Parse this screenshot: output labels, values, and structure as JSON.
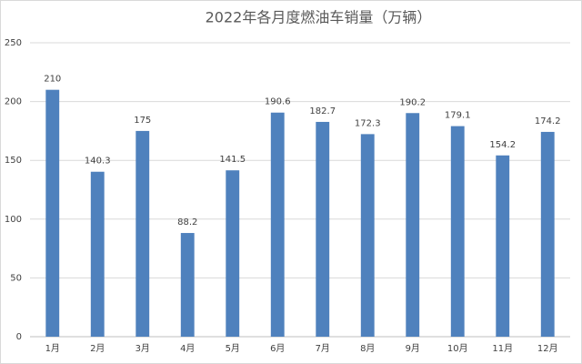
{
  "chart_data": {
    "type": "bar",
    "title": "2022年各月度燃油车销量（万辆）",
    "categories": [
      "1月",
      "2月",
      "3月",
      "4月",
      "5月",
      "6月",
      "7月",
      "8月",
      "9月",
      "10月",
      "11月",
      "12月"
    ],
    "values": [
      210,
      140.3,
      175,
      88.2,
      141.5,
      190.6,
      182.7,
      172.3,
      190.2,
      179.1,
      154.2,
      174.2
    ],
    "color": "#4f81bd",
    "ylim": [
      0,
      250
    ],
    "yticks": [
      0,
      50,
      100,
      150,
      200,
      250
    ],
    "grid": true
  }
}
